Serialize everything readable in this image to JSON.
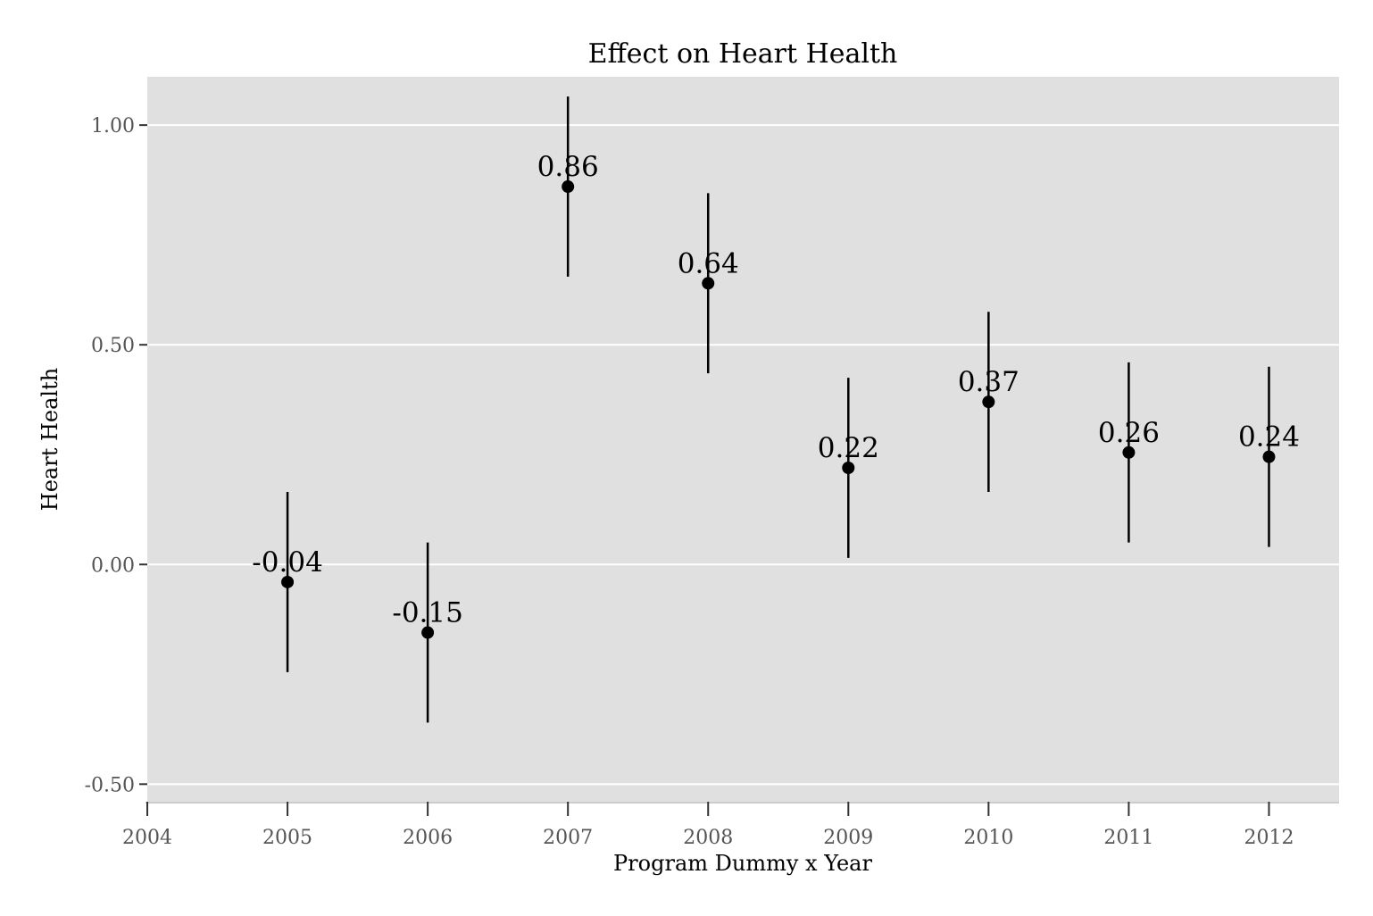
{
  "chart_data": {
    "type": "scatter",
    "title": "Effect on Heart Health",
    "xlabel": "Program Dummy x Year",
    "ylabel": "Heart Health",
    "xlim": [
      2004,
      2012.5
    ],
    "ylim": [
      -0.54,
      1.11
    ],
    "x_ticks": [
      2004,
      2005,
      2006,
      2007,
      2008,
      2009,
      2010,
      2011,
      2012
    ],
    "y_ticks": [
      -0.5,
      0.0,
      0.5,
      1.0
    ],
    "y_tick_labels": [
      "-0.50",
      "0.00",
      "0.50",
      "1.00"
    ],
    "grid": "horizontal",
    "background_color": "#e0e0e0",
    "grid_color": "#ffffff",
    "point_color": "#000000",
    "series": [
      {
        "x": [
          2005,
          2006,
          2007,
          2008,
          2009,
          2010,
          2011,
          2012
        ],
        "y": [
          -0.04,
          -0.155,
          0.86,
          0.64,
          0.22,
          0.37,
          0.255,
          0.245
        ],
        "labels": [
          "-0.04",
          "-0.15",
          "0.86",
          "0.64",
          "0.22",
          "0.37",
          "0.26",
          "0.24"
        ],
        "ci_low": [
          -0.245,
          -0.36,
          0.655,
          0.435,
          0.015,
          0.165,
          0.05,
          0.04
        ],
        "ci_high": [
          0.165,
          0.05,
          1.065,
          0.845,
          0.425,
          0.575,
          0.46,
          0.45
        ]
      }
    ]
  }
}
